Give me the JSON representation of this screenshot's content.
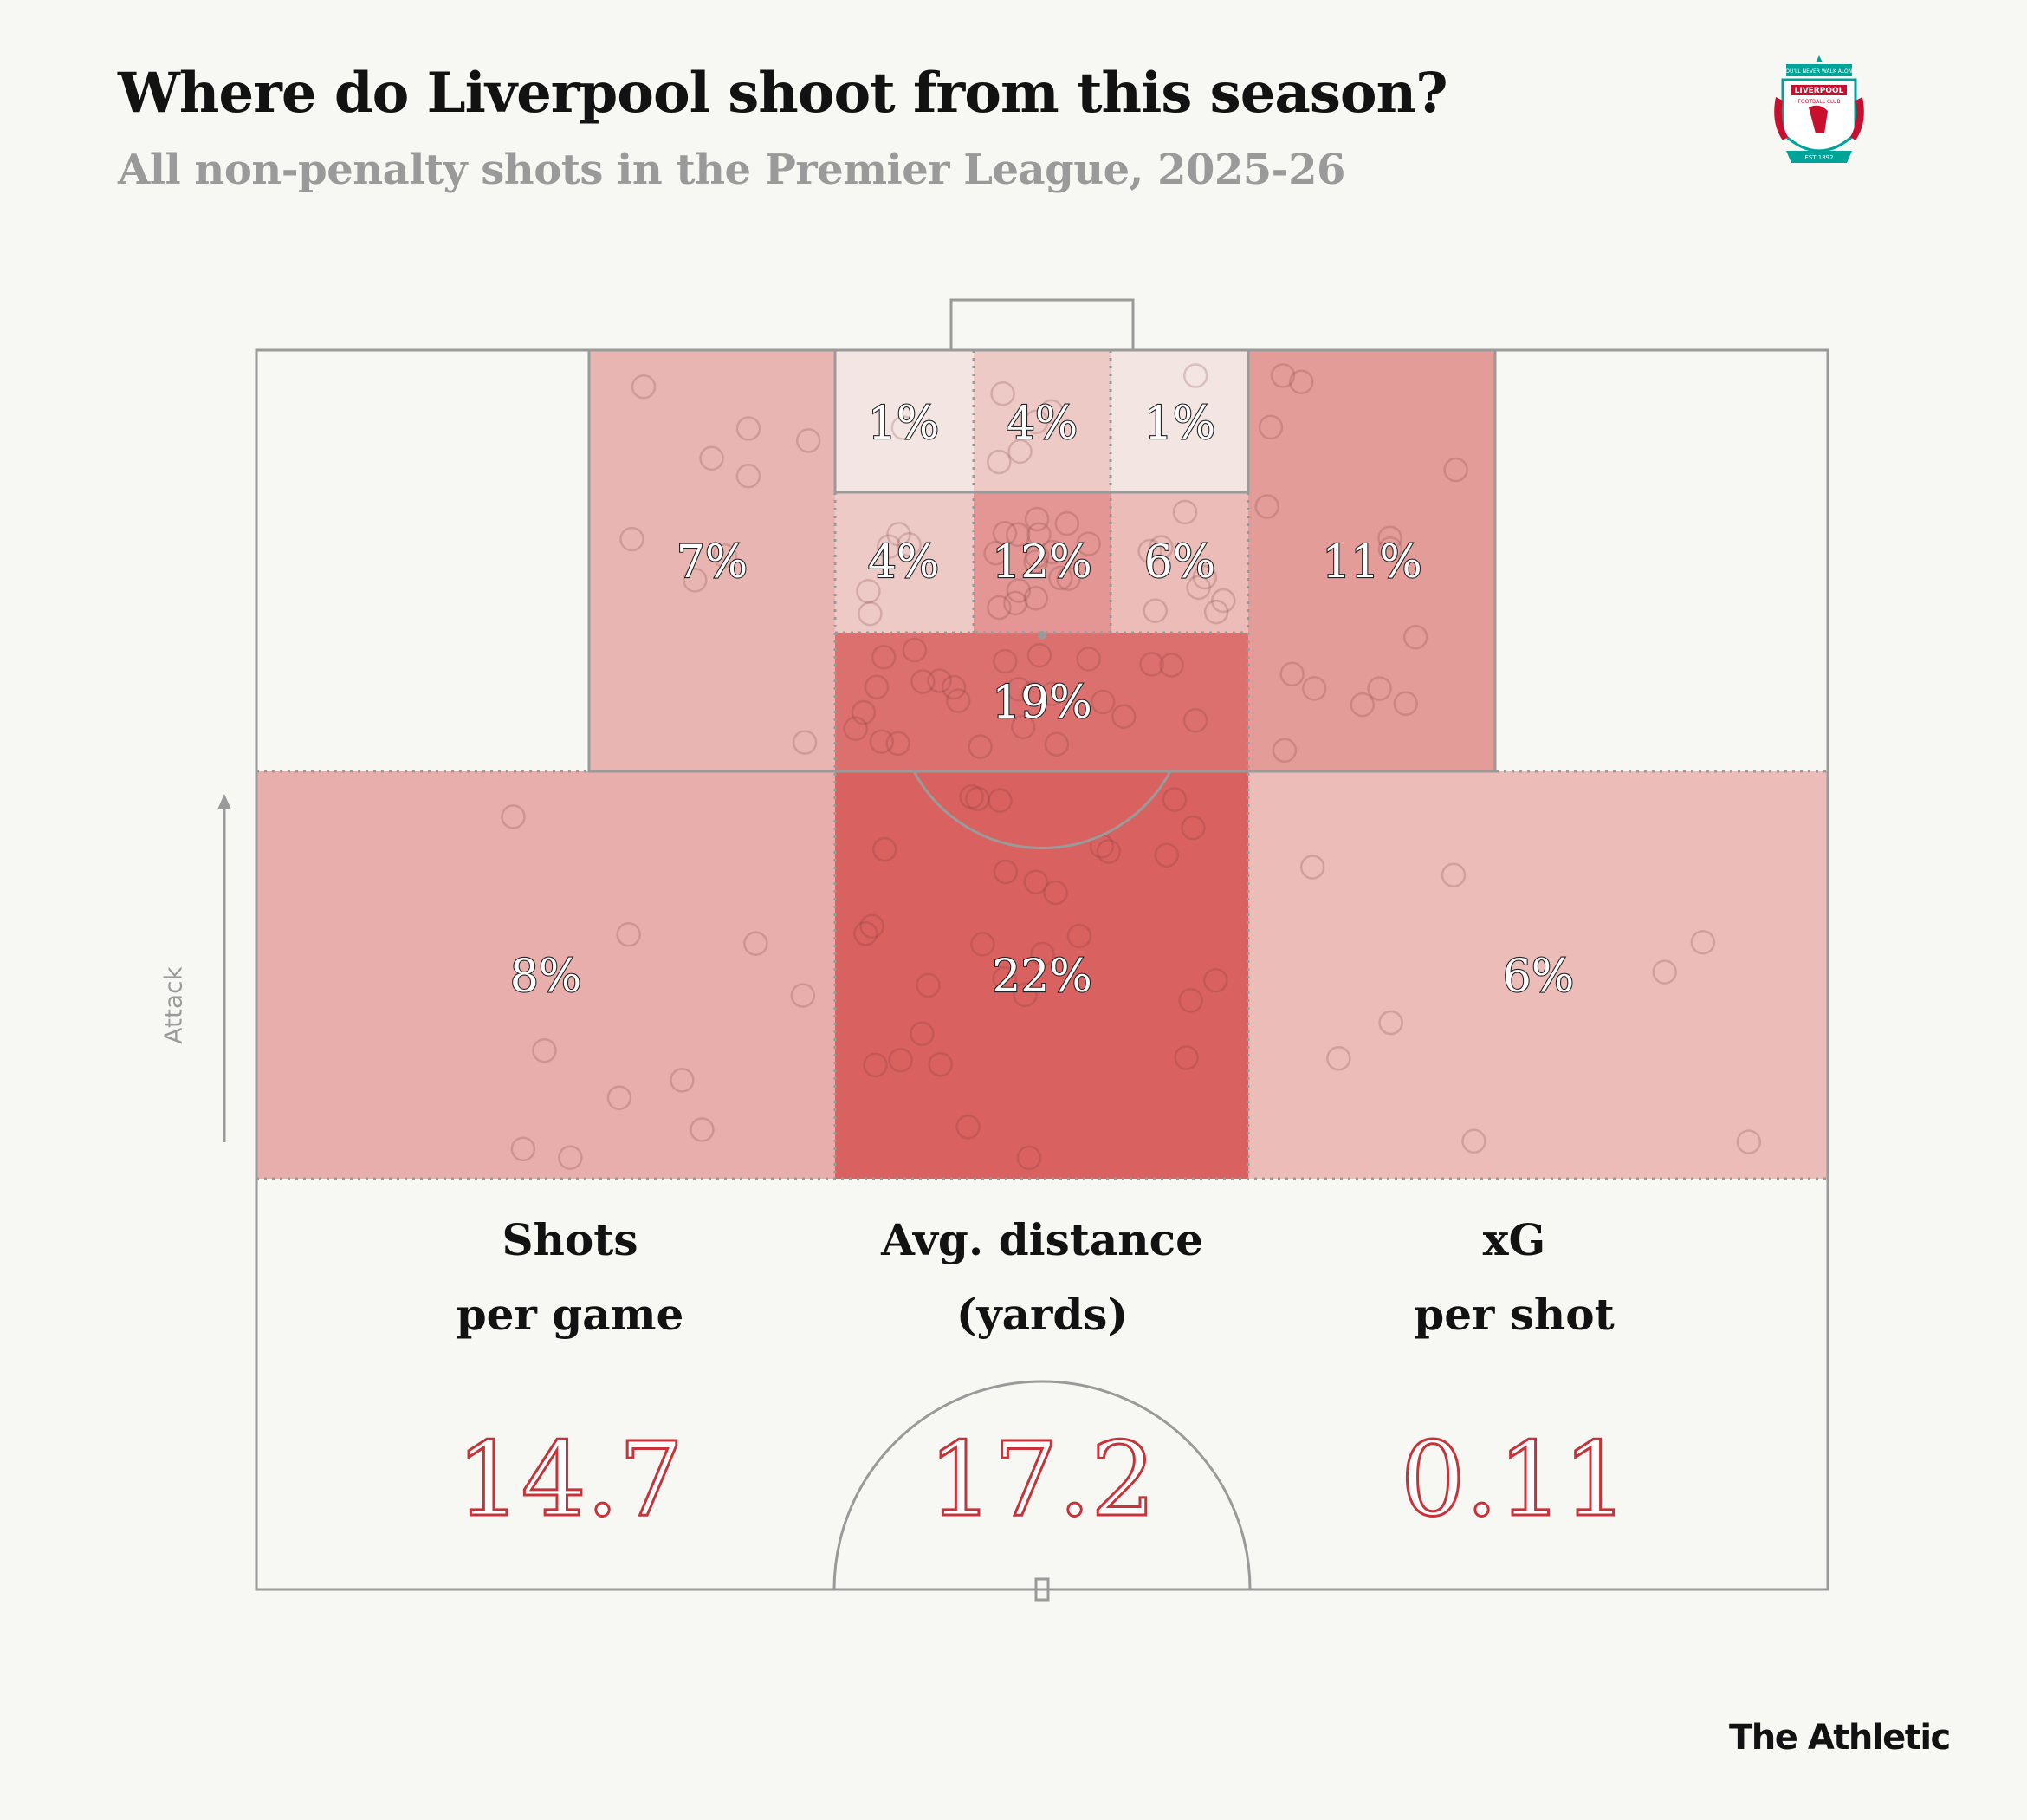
{
  "title": "Where do Liverpool shoot from this season?",
  "subtitle": "All non-penalty shots in the Premier League, 2025-26",
  "crest": {
    "icon": "liverpool-crest-icon",
    "text_top": "YOU'LL NEVER WALK ALONE",
    "text_name": "LIVERPOOL",
    "text_club": "FOOTBALL CLUB",
    "text_est": "EST 1892",
    "colors": {
      "red": "#c8102e",
      "green": "#00a398",
      "gold": "#f6eb61"
    }
  },
  "direction_label": "Attack",
  "brand": "The Athletic",
  "chart_data": {
    "type": "heatmap",
    "title": "Where do Liverpool shoot from this season?",
    "subtitle": "All non-penalty shots in the Premier League, 2025-26",
    "unit": "% of shots",
    "zones": [
      {
        "id": "six-yard-left",
        "value": 1,
        "label": "1%"
      },
      {
        "id": "six-yard-centre",
        "value": 4,
        "label": "4%"
      },
      {
        "id": "six-yard-right",
        "value": 1,
        "label": "1%"
      },
      {
        "id": "box-wide-left",
        "value": 7,
        "label": "7%"
      },
      {
        "id": "penalty-area-inner-left",
        "value": 4,
        "label": "4%"
      },
      {
        "id": "penalty-area-centre",
        "value": 12,
        "label": "12%"
      },
      {
        "id": "penalty-area-inner-right",
        "value": 6,
        "label": "6%"
      },
      {
        "id": "box-wide-right",
        "value": 11,
        "label": "11%"
      },
      {
        "id": "box-edge-centre",
        "value": 19,
        "label": "19%"
      },
      {
        "id": "outside-box-left",
        "value": 8,
        "label": "8%"
      },
      {
        "id": "outside-box-centre",
        "value": 22,
        "label": "22%"
      },
      {
        "id": "outside-box-right",
        "value": 6,
        "label": "6%"
      }
    ],
    "color_scale": {
      "low": "#f6f6f2",
      "high": "#d9615f"
    }
  },
  "stats": [
    {
      "label_line1": "Shots",
      "label_line2": "per game",
      "value": "14.7"
    },
    {
      "label_line1": "Avg. distance",
      "label_line2": "(yards)",
      "value": "17.2"
    },
    {
      "label_line1": "xG",
      "label_line2": "per shot",
      "value": "0.11"
    }
  ]
}
